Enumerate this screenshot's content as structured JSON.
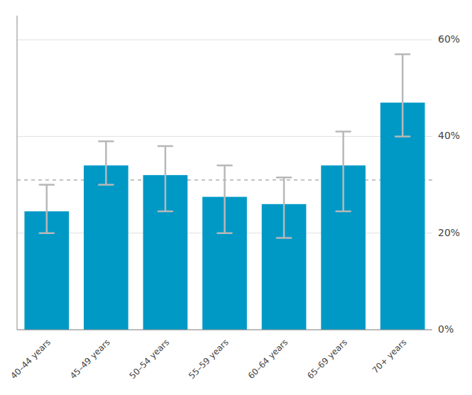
{
  "chart_data": {
    "type": "bar",
    "categories": [
      "40–44 years",
      "45–49 years",
      "50–54 years",
      "55–59 years",
      "60–64 years",
      "65–69 years",
      "70+ years"
    ],
    "values": [
      24.5,
      34.0,
      32.0,
      27.5,
      26.0,
      34.0,
      47.0
    ],
    "ci_lower": [
      20.0,
      30.0,
      24.5,
      20.0,
      19.0,
      24.5,
      40.0
    ],
    "ci_upper": [
      30.0,
      39.0,
      38.0,
      34.0,
      31.5,
      41.0,
      57.0
    ],
    "reference_line": 31.0,
    "color": "#0099c6",
    "ylim": [
      0,
      65
    ],
    "yticks": [
      {
        "value": 0,
        "label": "0%"
      },
      {
        "value": 20,
        "label": "20%"
      },
      {
        "value": 40,
        "label": "40%"
      },
      {
        "value": 60,
        "label": "60%"
      }
    ],
    "grid": true
  }
}
